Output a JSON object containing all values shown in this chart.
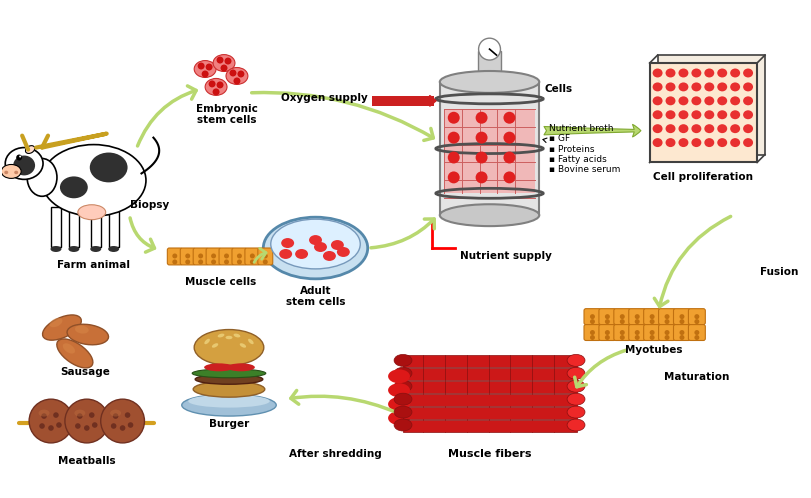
{
  "title": "",
  "background_color": "#ffffff",
  "labels": {
    "farm_animal": "Farm animal",
    "biopsy": "Biopsy",
    "embryonic": "Embryonic\nstem cells",
    "muscle_cells": "Muscle cells",
    "adult_stem": "Adult\nstem cells",
    "oxygen": "Oxygen supply",
    "cells": "Cells",
    "nutrient_supply": "Nutrient supply",
    "nutrient_broth": "Nutrient broth\n▪ GF\n▪ Proteins\n▪ Fatty acids\n▪ Bovine serum",
    "cell_prolif": "Cell proliferation",
    "fusion": "Fusion",
    "myotubes": "Myotubes",
    "maturation": "Maturation",
    "muscle_fibers": "Muscle fibers",
    "after_shredding": "After shredding",
    "burger": "Burger",
    "sausage": "Sausage",
    "meatballs": "Meatballs"
  },
  "colors": {
    "arrow_green": "#b8d870",
    "arrow_green_dark": "#80a830",
    "cell_red": "#e83030",
    "cell_pink": "#f4a0a0",
    "bioreactor_gray": "#c8c8c8",
    "bioreactor_fluid": "#f0b0b0",
    "orange_pill": "#f0a030",
    "orange_pill_dark": "#c07010",
    "proliferation_bg": "#fde8d0",
    "muscle_red": "#cc2020",
    "muscle_dark": "#881010",
    "sausage_color": "#c07838",
    "meatball_color": "#a05030",
    "burger_bun": "#d4a040",
    "burger_patty": "#704020",
    "plate_color": "#b0cce0",
    "dish_color": "#c8e0f0"
  }
}
